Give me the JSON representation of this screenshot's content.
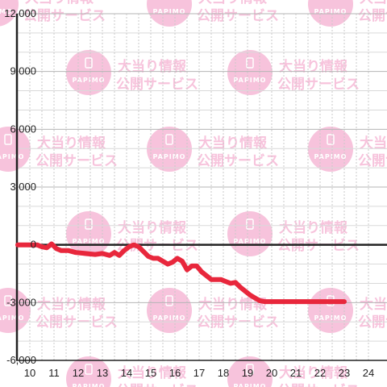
{
  "chart_data": {
    "type": "line",
    "title": "",
    "xlabel": "",
    "ylabel": "",
    "xlim": [
      9.5,
      24.3
    ],
    "ylim": [
      -6000,
      12000
    ],
    "x_ticks": [
      "10",
      "11",
      "12",
      "13",
      "14",
      "15",
      "16",
      "17",
      "18",
      "19",
      "20",
      "21",
      "22",
      "23",
      "24"
    ],
    "y_ticks": [
      "-6,000",
      "-3,000",
      "0",
      "3,000",
      "6,000",
      "9,000",
      "12,000"
    ],
    "y_tick_values": [
      -6000,
      -3000,
      0,
      3000,
      6000,
      9000,
      12000
    ],
    "grid": true,
    "line_color": "#e8273c",
    "series": [
      {
        "x": [
          9.5,
          10.0,
          10.3,
          10.5,
          10.7,
          10.9,
          11.1,
          11.3,
          11.6,
          11.9,
          12.3,
          12.7,
          13.0,
          13.3,
          13.5,
          13.7,
          13.9,
          14.1,
          14.3,
          14.5,
          14.7,
          14.9,
          15.1,
          15.3,
          15.5,
          15.7,
          15.9,
          16.1,
          16.3,
          16.5,
          16.7,
          16.9,
          17.1,
          17.3,
          17.5,
          17.7,
          17.9,
          18.1,
          18.3,
          18.5,
          18.7,
          18.9,
          19.1,
          19.3,
          19.5,
          19.7,
          19.9,
          20.1,
          20.3,
          20.5,
          20.7,
          20.9,
          21.1,
          21.4,
          21.7,
          22.0,
          22.3,
          22.6,
          23.0
        ],
        "y": [
          0,
          0,
          0,
          -100,
          -150,
          50,
          -200,
          -300,
          -300,
          -400,
          -450,
          -500,
          -450,
          -550,
          -400,
          -550,
          -300,
          -100,
          0,
          -100,
          -350,
          -600,
          -700,
          -700,
          -850,
          -1000,
          -900,
          -700,
          -850,
          -1300,
          -1100,
          -1100,
          -1400,
          -1600,
          -1800,
          -1800,
          -1800,
          -1900,
          -2000,
          -1950,
          -2200,
          -2400,
          -2600,
          -2750,
          -2900,
          -2950,
          -2950,
          -2950,
          -2950,
          -2950,
          -2950,
          -2950,
          -2950,
          -2950,
          -2950,
          -2950,
          -2950,
          -2950,
          -2950
        ]
      }
    ]
  },
  "watermark": {
    "title_line1": "大当り情報",
    "title_line2": "公開サービス",
    "logo_text": "PAPIMO",
    "color": "#f6b9d6"
  }
}
